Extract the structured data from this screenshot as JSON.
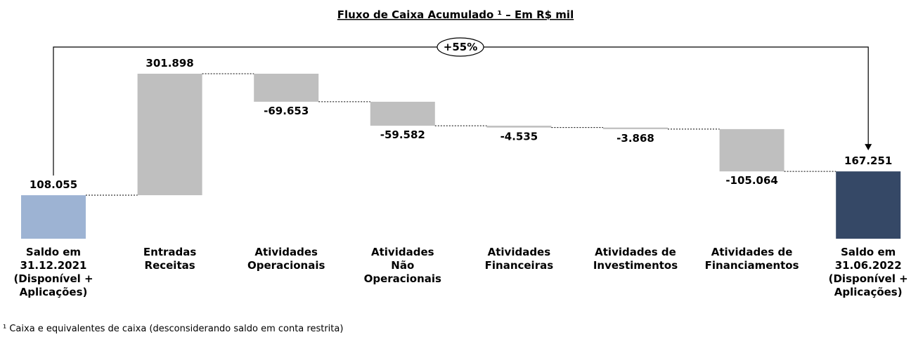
{
  "chart_data": {
    "type": "waterfall",
    "title": "Fluxo de Caixa Acumulado ¹ –  Em R$ mil",
    "categories": [
      "Saldo em\n31.12.2021\n(Disponível +\nAplicações)",
      "Entradas\nReceitas",
      "Atividades\nOperacionais",
      "Atividades\nNão\nOperacionais",
      "Atividades\nFinanceiras",
      "Atividades de\nInvestimentos",
      "Atividades de\nFinanciamentos",
      "Saldo em\n31.06.2022\n(Disponível +\nAplicações)"
    ],
    "values": [
      108055,
      301898,
      -69653,
      -59582,
      -4535,
      -3868,
      -105064,
      167251
    ],
    "value_labels": [
      "108.055",
      "301.898",
      "-69.653",
      "-59.582",
      "-4.535",
      "-3.868",
      "-105.064",
      "167.251"
    ],
    "start_color": "#9db3d3",
    "delta_color": "#bfbfbf",
    "end_color": "#354866",
    "annotation": "+55%",
    "footnote": "¹ Caixa e equivalentes de caixa (desconsiderando saldo em conta restrita)"
  }
}
